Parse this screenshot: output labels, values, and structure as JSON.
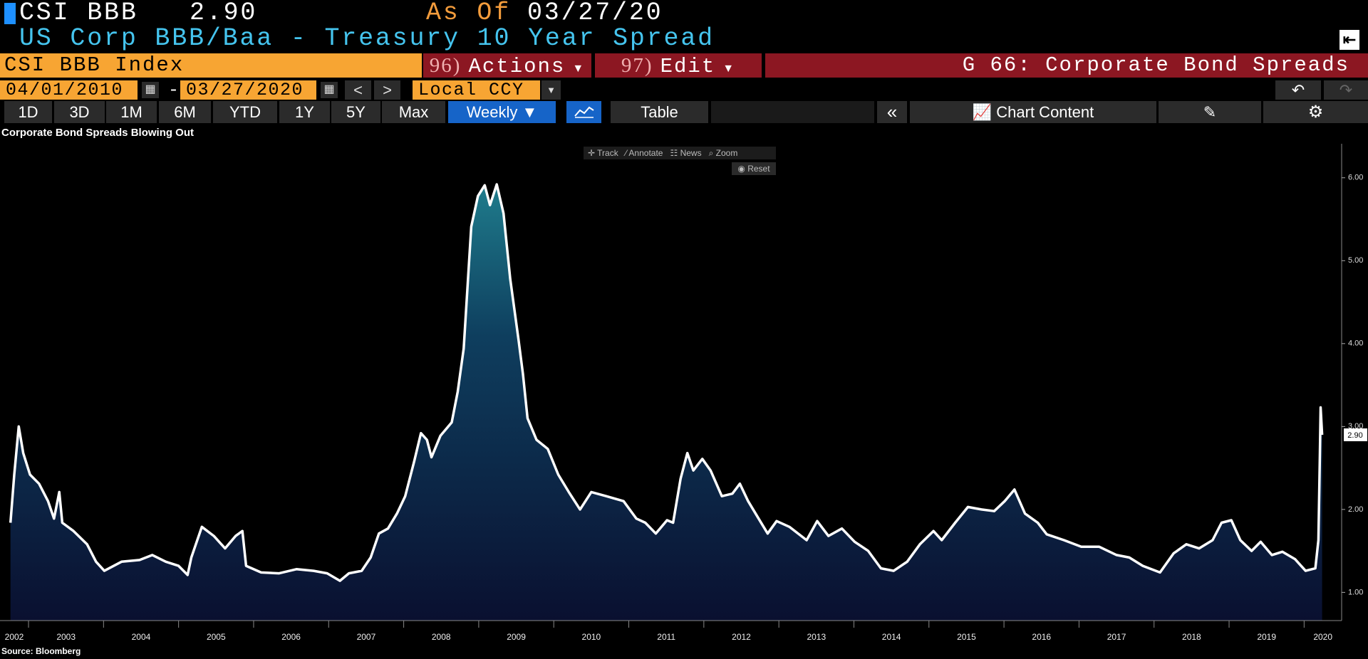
{
  "header": {
    "ticker": "CSI BBB",
    "price": "2.90",
    "as_of_label": "As Of",
    "as_of_date": "03/27/20",
    "description": "US Corp BBB/Baa - Treasury 10 Year Spread"
  },
  "menu": {
    "security": "CSI BBB Index",
    "actions_code": "96)",
    "actions": "Actions",
    "edit_code": "97)",
    "edit": "Edit",
    "function": "G 66: Corporate Bond Spreads"
  },
  "range": {
    "start": "04/01/2010",
    "separator": "-",
    "end": "03/27/2020",
    "currency": "Local CCY"
  },
  "toolbar": {
    "periods": [
      "1D",
      "3D",
      "1M",
      "6M",
      "YTD",
      "1Y",
      "5Y",
      "Max"
    ],
    "frequency": "Weekly",
    "table": "Table",
    "chart_content": "Chart Content"
  },
  "chart_tools": {
    "tools": [
      "Track",
      "Annotate",
      "News",
      "Zoom"
    ],
    "reset": "Reset"
  },
  "chart_data": {
    "type": "area",
    "title": "Corporate Bond Spreads Blowing Out",
    "source": "Source: Bloomberg",
    "color": "#ffffff",
    "last_value_label": "2.90",
    "x": [
      2002.76,
      2002.81,
      2002.87,
      2002.93,
      2003.02,
      2003.14,
      2003.26,
      2003.34,
      2003.41,
      2003.45,
      2003.6,
      2003.78,
      2003.9,
      2004.01,
      2004.24,
      2004.48,
      2004.65,
      2004.83,
      2005.0,
      2005.12,
      2005.17,
      2005.31,
      2005.47,
      2005.62,
      2005.76,
      2005.85,
      2005.9,
      2006.1,
      2006.34,
      2006.57,
      2006.8,
      2006.98,
      2007.15,
      2007.27,
      2007.44,
      2007.56,
      2007.67,
      2007.79,
      2007.91,
      2008.02,
      2008.14,
      2008.23,
      2008.31,
      2008.37,
      2008.49,
      2008.64,
      2008.72,
      2008.8,
      2008.9,
      2008.99,
      2009.08,
      2009.15,
      2009.24,
      2009.33,
      2009.42,
      2009.53,
      2009.59,
      2009.65,
      2009.77,
      2009.92,
      2010.06,
      2010.2,
      2010.35,
      2010.5,
      2010.7,
      2010.93,
      2011.1,
      2011.22,
      2011.36,
      2011.51,
      2011.59,
      2011.69,
      2011.78,
      2011.86,
      2011.98,
      2012.09,
      2012.24,
      2012.38,
      2012.48,
      2012.59,
      2012.73,
      2012.85,
      2012.97,
      2013.14,
      2013.37,
      2013.51,
      2013.66,
      2013.84,
      2014.01,
      2014.19,
      2014.36,
      2014.53,
      2014.71,
      2014.88,
      2015.06,
      2015.17,
      2015.35,
      2015.52,
      2015.7,
      2015.87,
      2016.01,
      2016.14,
      2016.28,
      2016.45,
      2016.57,
      2016.8,
      2017.03,
      2017.27,
      2017.5,
      2017.67,
      2017.85,
      2018.08,
      2018.26,
      2018.43,
      2018.6,
      2018.78,
      2018.9,
      2019.03,
      2019.15,
      2019.3,
      2019.42,
      2019.57,
      2019.71,
      2019.88,
      2020.02,
      2020.15,
      2020.19,
      2020.21,
      2020.22,
      2020.24
    ],
    "values": [
      1.84,
      2.42,
      3.0,
      2.68,
      2.42,
      2.31,
      2.1,
      1.89,
      2.21,
      1.84,
      1.74,
      1.58,
      1.37,
      1.26,
      1.37,
      1.39,
      1.45,
      1.37,
      1.32,
      1.21,
      1.42,
      1.79,
      1.68,
      1.53,
      1.68,
      1.74,
      1.32,
      1.24,
      1.23,
      1.28,
      1.26,
      1.23,
      1.14,
      1.23,
      1.26,
      1.42,
      1.71,
      1.77,
      1.95,
      2.16,
      2.58,
      2.92,
      2.84,
      2.63,
      2.89,
      3.05,
      3.42,
      3.94,
      5.41,
      5.78,
      5.91,
      5.67,
      5.92,
      5.57,
      4.78,
      4.05,
      3.63,
      3.1,
      2.84,
      2.73,
      2.42,
      2.21,
      2.0,
      2.21,
      2.16,
      2.1,
      1.89,
      1.84,
      1.71,
      1.87,
      1.84,
      2.37,
      2.68,
      2.47,
      2.61,
      2.47,
      2.16,
      2.19,
      2.31,
      2.1,
      1.89,
      1.71,
      1.86,
      1.79,
      1.63,
      1.86,
      1.68,
      1.77,
      1.61,
      1.5,
      1.29,
      1.26,
      1.37,
      1.58,
      1.74,
      1.63,
      1.84,
      2.03,
      2.0,
      1.98,
      2.1,
      2.24,
      1.95,
      1.84,
      1.7,
      1.63,
      1.55,
      1.55,
      1.45,
      1.42,
      1.32,
      1.24,
      1.47,
      1.58,
      1.53,
      1.63,
      1.84,
      1.87,
      1.63,
      1.5,
      1.61,
      1.45,
      1.49,
      1.4,
      1.26,
      1.29,
      1.63,
      2.68,
      3.23,
      2.9
    ],
    "xlim": [
      2002.62,
      2020.5
    ],
    "xticks": [
      {
        "value": 2002.81,
        "label": "2002"
      },
      {
        "value": 2003.5,
        "label": "2003"
      },
      {
        "value": 2004.5,
        "label": "2004"
      },
      {
        "value": 2005.5,
        "label": "2005"
      },
      {
        "value": 2006.5,
        "label": "2006"
      },
      {
        "value": 2007.5,
        "label": "2007"
      },
      {
        "value": 2008.5,
        "label": "2008"
      },
      {
        "value": 2009.5,
        "label": "2009"
      },
      {
        "value": 2010.5,
        "label": "2010"
      },
      {
        "value": 2011.5,
        "label": "2011"
      },
      {
        "value": 2012.5,
        "label": "2012"
      },
      {
        "value": 2013.5,
        "label": "2013"
      },
      {
        "value": 2014.5,
        "label": "2014"
      },
      {
        "value": 2015.5,
        "label": "2015"
      },
      {
        "value": 2016.5,
        "label": "2016"
      },
      {
        "value": 2017.5,
        "label": "2017"
      },
      {
        "value": 2018.5,
        "label": "2018"
      },
      {
        "value": 2019.5,
        "label": "2019"
      },
      {
        "value": 2020.25,
        "label": "2020"
      }
    ],
    "ylim": [
      0.66,
      6.41
    ],
    "yticks": [
      {
        "value": 1,
        "label": "1.00"
      },
      {
        "value": 2,
        "label": "2.00"
      },
      {
        "value": 3,
        "label": "3.00"
      },
      {
        "value": 4,
        "label": "4.00"
      },
      {
        "value": 5,
        "label": "5.00"
      },
      {
        "value": 6,
        "label": "6.00"
      }
    ]
  }
}
